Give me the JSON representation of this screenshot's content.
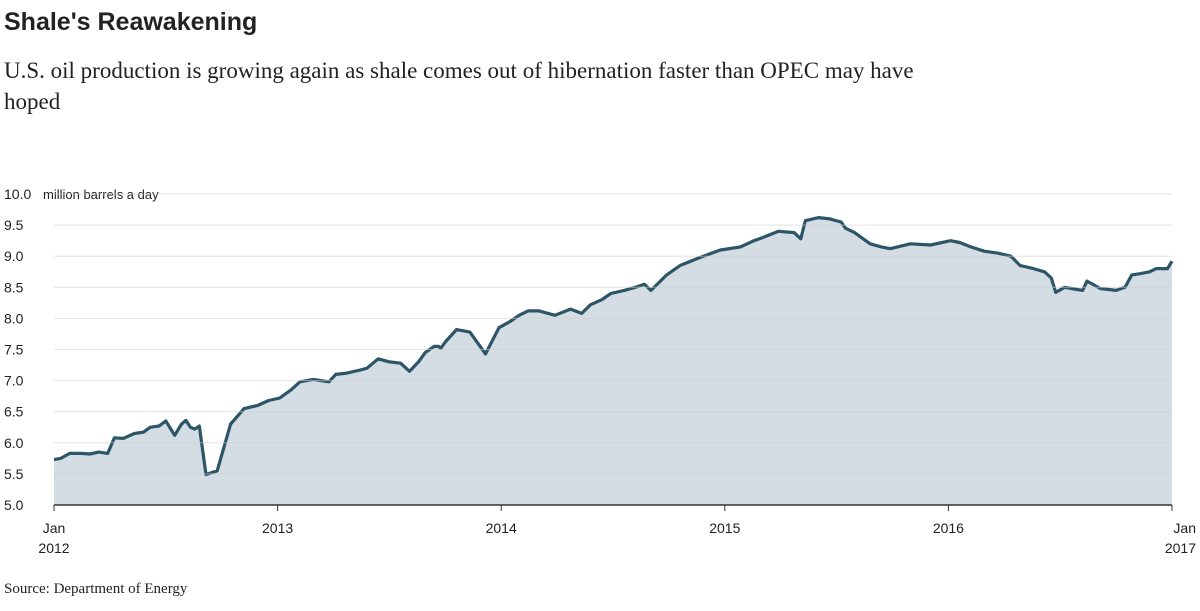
{
  "chart_data": {
    "type": "area",
    "title": "Shale's Reawakening",
    "subtitle": "U.S. oil production is growing again as shale comes out of hibernation faster than OPEC may have hoped",
    "y_axis_label": "million barrels a day",
    "source": "Source: Department of Energy",
    "series": [
      {
        "name": "U.S. oil production",
        "color": "#2c5568",
        "fill": "#d3dde3",
        "x": [
          2012.0,
          2012.03,
          2012.07,
          2012.12,
          2012.16,
          2012.2,
          2012.24,
          2012.27,
          2012.31,
          2012.36,
          2012.4,
          2012.43,
          2012.47,
          2012.5,
          2012.54,
          2012.57,
          2012.59,
          2012.61,
          2012.63,
          2012.65,
          2012.68,
          2012.73,
          2012.79,
          2012.85,
          2012.91,
          2012.96,
          2013.01,
          2013.06,
          2013.1,
          2013.16,
          2013.23,
          2013.26,
          2013.31,
          2013.37,
          2013.4,
          2013.45,
          2013.5,
          2013.55,
          2013.59,
          2013.63,
          2013.66,
          2013.7,
          2013.72,
          2013.73,
          2013.75,
          2013.8,
          2013.86,
          2013.93,
          2013.99,
          2014.04,
          2014.08,
          2014.12,
          2014.17,
          2014.24,
          2014.31,
          2014.36,
          2014.4,
          2014.45,
          2014.49,
          2014.55,
          2014.6,
          2014.64,
          2014.67,
          2014.74,
          2014.8,
          2014.89,
          2014.98,
          2015.07,
          2015.13,
          2015.17,
          2015.24,
          2015.31,
          2015.34,
          2015.36,
          2015.42,
          2015.47,
          2015.52,
          2015.54,
          2015.58,
          2015.65,
          2015.7,
          2015.74,
          2015.83,
          2015.92,
          2016.01,
          2016.05,
          2016.1,
          2016.16,
          2016.22,
          2016.28,
          2016.32,
          2016.38,
          2016.43,
          2016.46,
          2016.48,
          2016.52,
          2016.55,
          2016.6,
          2016.62,
          2016.68,
          2016.75,
          2016.79,
          2016.82,
          2016.86,
          2016.9,
          2016.93,
          2016.98,
          2017.0
        ],
        "values": [
          5.73,
          5.75,
          5.83,
          5.83,
          5.82,
          5.85,
          5.83,
          6.08,
          6.07,
          6.15,
          6.17,
          6.25,
          6.27,
          6.35,
          6.12,
          6.3,
          6.36,
          6.25,
          6.22,
          6.27,
          5.49,
          5.55,
          6.3,
          6.55,
          6.6,
          6.68,
          6.72,
          6.85,
          6.98,
          7.02,
          6.98,
          7.1,
          7.12,
          7.17,
          7.2,
          7.35,
          7.3,
          7.28,
          7.15,
          7.3,
          7.45,
          7.55,
          7.55,
          7.52,
          7.62,
          7.82,
          7.78,
          7.43,
          7.85,
          7.95,
          8.05,
          8.12,
          8.12,
          8.05,
          8.15,
          8.08,
          8.22,
          8.3,
          8.4,
          8.45,
          8.5,
          8.55,
          8.45,
          8.7,
          8.85,
          8.98,
          9.1,
          9.15,
          9.25,
          9.3,
          9.4,
          9.38,
          9.28,
          9.57,
          9.62,
          9.6,
          9.55,
          9.45,
          9.38,
          9.2,
          9.15,
          9.12,
          9.2,
          9.18,
          9.25,
          9.22,
          9.15,
          9.08,
          9.05,
          9.0,
          8.85,
          8.8,
          8.75,
          8.65,
          8.42,
          8.5,
          8.48,
          8.45,
          8.6,
          8.48,
          8.45,
          8.5,
          8.7,
          8.72,
          8.75,
          8.8,
          8.8,
          8.92
        ]
      }
    ],
    "xlim": [
      2012,
      2017
    ],
    "xticks": [
      {
        "value": 2012,
        "label": "Jan 2012"
      },
      2013,
      2014,
      2015,
      2016,
      {
        "value": 2017,
        "label": "Jan 2017"
      }
    ],
    "ylim": [
      5,
      10
    ],
    "yticks": [
      {
        "value": 5,
        "label": "5.0"
      },
      5.5,
      {
        "value": 6,
        "label": "6.0"
      },
      6.5,
      {
        "value": 7,
        "label": "7.0"
      },
      7.5,
      {
        "value": 8,
        "label": "8.0"
      },
      8.5,
      {
        "value": 9,
        "label": "9.0"
      },
      9.5,
      {
        "value": 10,
        "label": "10.0"
      }
    ],
    "grid": true
  }
}
